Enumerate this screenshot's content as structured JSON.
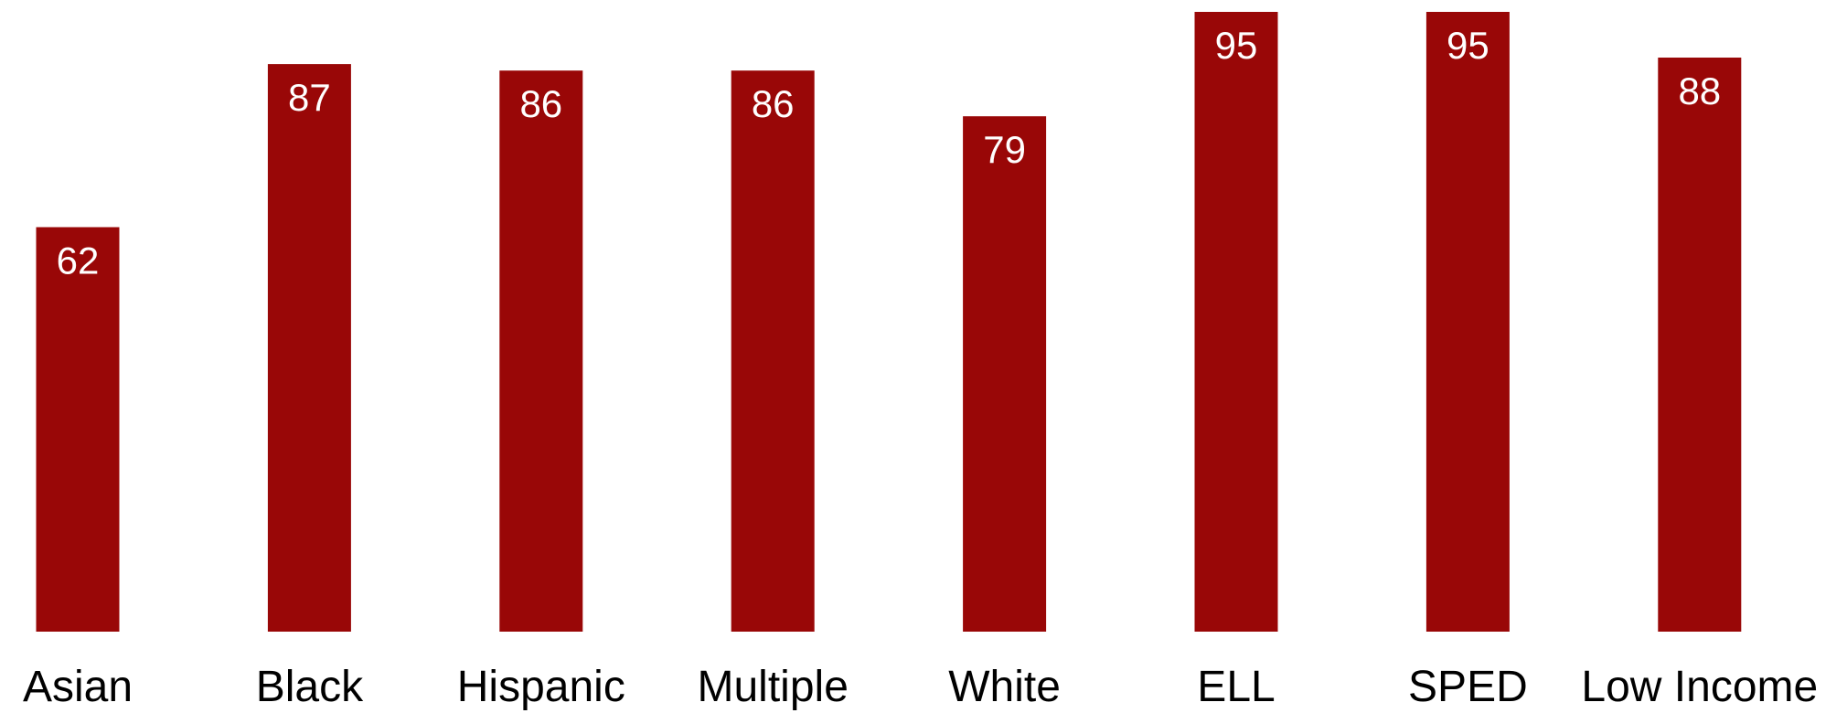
{
  "chart_data": {
    "type": "bar",
    "title": "",
    "xlabel": "",
    "ylabel": "",
    "categories": [
      "Asian",
      "Black",
      "Hispanic",
      "Multiple",
      "White",
      "ELL",
      "SPED",
      "Low Income"
    ],
    "values": [
      62,
      87,
      86,
      86,
      79,
      95,
      95,
      88
    ],
    "ylim": [
      0,
      95
    ],
    "grid": false,
    "legend": "none",
    "bar_color": "#990707",
    "value_label_color": "#ffffff",
    "data_labels": true
  }
}
